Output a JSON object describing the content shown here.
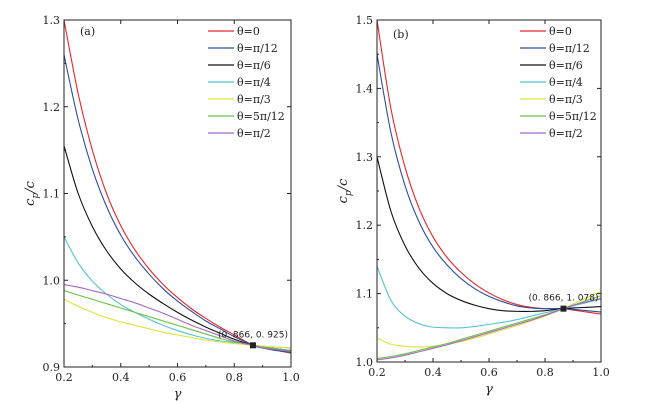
{
  "chart_data": [
    {
      "type": "line",
      "panel_label": "(a)",
      "xlabel": "γ",
      "ylabel": "c_p/c",
      "ylabel_main": "c",
      "ylabel_sub": "p",
      "ylabel_tail": "/c",
      "xlim": [
        0.2,
        1.0
      ],
      "ylim": [
        0.9,
        1.3
      ],
      "xticks": [
        0.2,
        0.4,
        0.6,
        0.8,
        1.0
      ],
      "xtick_labels": [
        "0.2",
        "0.4",
        "0.6",
        "0.8",
        "1.0"
      ],
      "yticks": [
        0.9,
        1.0,
        1.1,
        1.2,
        1.3
      ],
      "ytick_labels": [
        "0.9",
        "1.0",
        "1.1",
        "1.2",
        "1.3"
      ],
      "legend_position": "top-right",
      "annotation": {
        "label": "(0. 866, 0. 925)",
        "x": 0.866,
        "y": 0.925
      },
      "x": [
        0.2,
        0.25,
        0.3,
        0.35,
        0.4,
        0.45,
        0.5,
        0.55,
        0.6,
        0.65,
        0.7,
        0.75,
        0.8,
        0.866,
        0.9,
        0.95,
        1.0
      ],
      "series": [
        {
          "name": "θ=0",
          "color": "#e8262a",
          "values": [
            1.3,
            1.215,
            1.15,
            1.1,
            1.063,
            1.035,
            1.013,
            0.995,
            0.98,
            0.967,
            0.956,
            0.946,
            0.937,
            0.925,
            0.922,
            0.919,
            0.916
          ]
        },
        {
          "name": "θ=π/12",
          "color": "#2b4f9e",
          "values": [
            1.26,
            1.185,
            1.128,
            1.085,
            1.052,
            1.027,
            1.007,
            0.99,
            0.976,
            0.964,
            0.953,
            0.944,
            0.935,
            0.925,
            0.922,
            0.919,
            0.917
          ]
        },
        {
          "name": "θ=π/6",
          "color": "#111111",
          "values": [
            1.155,
            1.1,
            1.062,
            1.034,
            1.013,
            0.997,
            0.984,
            0.973,
            0.963,
            0.954,
            0.946,
            0.939,
            0.932,
            0.925,
            0.923,
            0.921,
            0.919
          ]
        },
        {
          "name": "θ=π/4",
          "color": "#52c4d6",
          "values": [
            1.05,
            1.02,
            0.999,
            0.984,
            0.972,
            0.963,
            0.955,
            0.948,
            0.942,
            0.937,
            0.933,
            0.93,
            0.928,
            0.925,
            0.924,
            0.923,
            0.922
          ]
        },
        {
          "name": "θ=π/3",
          "color": "#e4e23c",
          "values": [
            0.978,
            0.97,
            0.963,
            0.957,
            0.952,
            0.948,
            0.944,
            0.94,
            0.937,
            0.934,
            0.931,
            0.929,
            0.927,
            0.925,
            0.924,
            0.923,
            0.922
          ]
        },
        {
          "name": "θ=5π/12",
          "color": "#6cc24a",
          "values": [
            0.988,
            0.983,
            0.978,
            0.973,
            0.968,
            0.963,
            0.958,
            0.953,
            0.948,
            0.943,
            0.938,
            0.933,
            0.929,
            0.925,
            0.923,
            0.921,
            0.919
          ]
        },
        {
          "name": "θ=π/2",
          "color": "#a868c4",
          "values": [
            0.995,
            0.992,
            0.988,
            0.984,
            0.979,
            0.974,
            0.968,
            0.962,
            0.955,
            0.948,
            0.942,
            0.936,
            0.93,
            0.925,
            0.922,
            0.92,
            0.918
          ]
        }
      ]
    },
    {
      "type": "line",
      "panel_label": "(b)",
      "xlabel": "γ",
      "ylabel": "c_p/c",
      "ylabel_main": "c",
      "ylabel_sub": "p",
      "ylabel_tail": "/c",
      "xlim": [
        0.2,
        1.0
      ],
      "ylim": [
        1.0,
        1.5
      ],
      "xticks": [
        0.2,
        0.4,
        0.6,
        0.8,
        1.0
      ],
      "xtick_labels": [
        "0.2",
        "0.4",
        "0.6",
        "0.8",
        "1.0"
      ],
      "yticks": [
        1.0,
        1.1,
        1.2,
        1.3,
        1.4,
        1.5
      ],
      "ytick_labels": [
        "1.0",
        "1.1",
        "1.2",
        "1.3",
        "1.4",
        "1.5"
      ],
      "legend_position": "top-right",
      "annotation": {
        "label": "(0. 866, 1. 078)",
        "x": 0.866,
        "y": 1.078
      },
      "x": [
        0.2,
        0.25,
        0.3,
        0.35,
        0.4,
        0.45,
        0.5,
        0.55,
        0.6,
        0.65,
        0.7,
        0.75,
        0.8,
        0.866,
        0.9,
        0.95,
        1.0
      ],
      "series": [
        {
          "name": "θ=0",
          "color": "#e8262a",
          "values": [
            1.5,
            1.37,
            1.285,
            1.225,
            1.183,
            1.153,
            1.131,
            1.114,
            1.101,
            1.091,
            1.084,
            1.08,
            1.078,
            1.078,
            1.076,
            1.073,
            1.07
          ]
        },
        {
          "name": "θ=π/12",
          "color": "#2b4f9e",
          "values": [
            1.45,
            1.335,
            1.258,
            1.205,
            1.168,
            1.142,
            1.122,
            1.107,
            1.096,
            1.088,
            1.082,
            1.079,
            1.078,
            1.078,
            1.077,
            1.075,
            1.073
          ]
        },
        {
          "name": "θ=π/6",
          "color": "#111111",
          "values": [
            1.3,
            1.22,
            1.17,
            1.137,
            1.115,
            1.1,
            1.09,
            1.083,
            1.078,
            1.075,
            1.074,
            1.074,
            1.075,
            1.078,
            1.079,
            1.08,
            1.081
          ]
        },
        {
          "name": "θ=π/4",
          "color": "#52c4d6",
          "values": [
            1.14,
            1.09,
            1.067,
            1.056,
            1.051,
            1.05,
            1.05,
            1.052,
            1.055,
            1.058,
            1.062,
            1.067,
            1.072,
            1.078,
            1.082,
            1.087,
            1.092
          ]
        },
        {
          "name": "θ=π/3",
          "color": "#e4e23c",
          "values": [
            1.035,
            1.026,
            1.023,
            1.022,
            1.023,
            1.026,
            1.03,
            1.035,
            1.041,
            1.047,
            1.053,
            1.06,
            1.067,
            1.078,
            1.085,
            1.094,
            1.103
          ]
        },
        {
          "name": "θ=5π/12",
          "color": "#6cc24a",
          "values": [
            1.005,
            1.008,
            1.012,
            1.017,
            1.022,
            1.027,
            1.033,
            1.039,
            1.045,
            1.051,
            1.057,
            1.063,
            1.069,
            1.078,
            1.083,
            1.09,
            1.097
          ]
        },
        {
          "name": "θ=π/2",
          "color": "#a868c4",
          "values": [
            1.003,
            1.006,
            1.01,
            1.015,
            1.02,
            1.025,
            1.031,
            1.037,
            1.043,
            1.049,
            1.055,
            1.061,
            1.068,
            1.078,
            1.083,
            1.088,
            1.093
          ]
        }
      ]
    }
  ]
}
